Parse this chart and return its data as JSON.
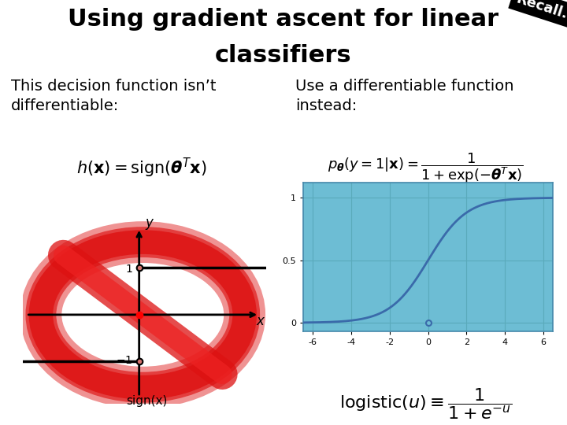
{
  "title_line1": "Using gradient ascent for linear",
  "title_line2": "classifiers",
  "recall_label": "Recall...",
  "left_bg": "#d4736e",
  "right_bg": "#6dbdd4",
  "left_title": "This decision function isn’t\ndifferentiable:",
  "right_title": "Use a differentiable function\ninstead:",
  "left_formula": "$h(\\mathbf{x}) = \\mathrm{sign}(\\boldsymbol{\\theta}^T \\mathbf{x})$",
  "right_formula_num": "1",
  "right_formula_main": "$p_{\\boldsymbol{\\theta}}(y=1|\\mathbf{x}) = \\dfrac{1}{1+\\mathrm{exp}(-\\boldsymbol{\\theta}^T\\mathbf{x})}$",
  "bottom_formula": "$\\mathrm{logistic}(u) \\equiv \\dfrac{1}{1+e^{-u}}$",
  "sign_label": "sign(x)",
  "white": "#ffffff",
  "black": "#000000",
  "title_fontsize": 22,
  "panel_title_fontsize": 14,
  "sigmoid_color": "#3a6aaa",
  "no_sign_color": "#ee2222",
  "no_ring_color": "#dd1111",
  "grid_color": "#5aaabb",
  "spine_color": "#4488aa"
}
